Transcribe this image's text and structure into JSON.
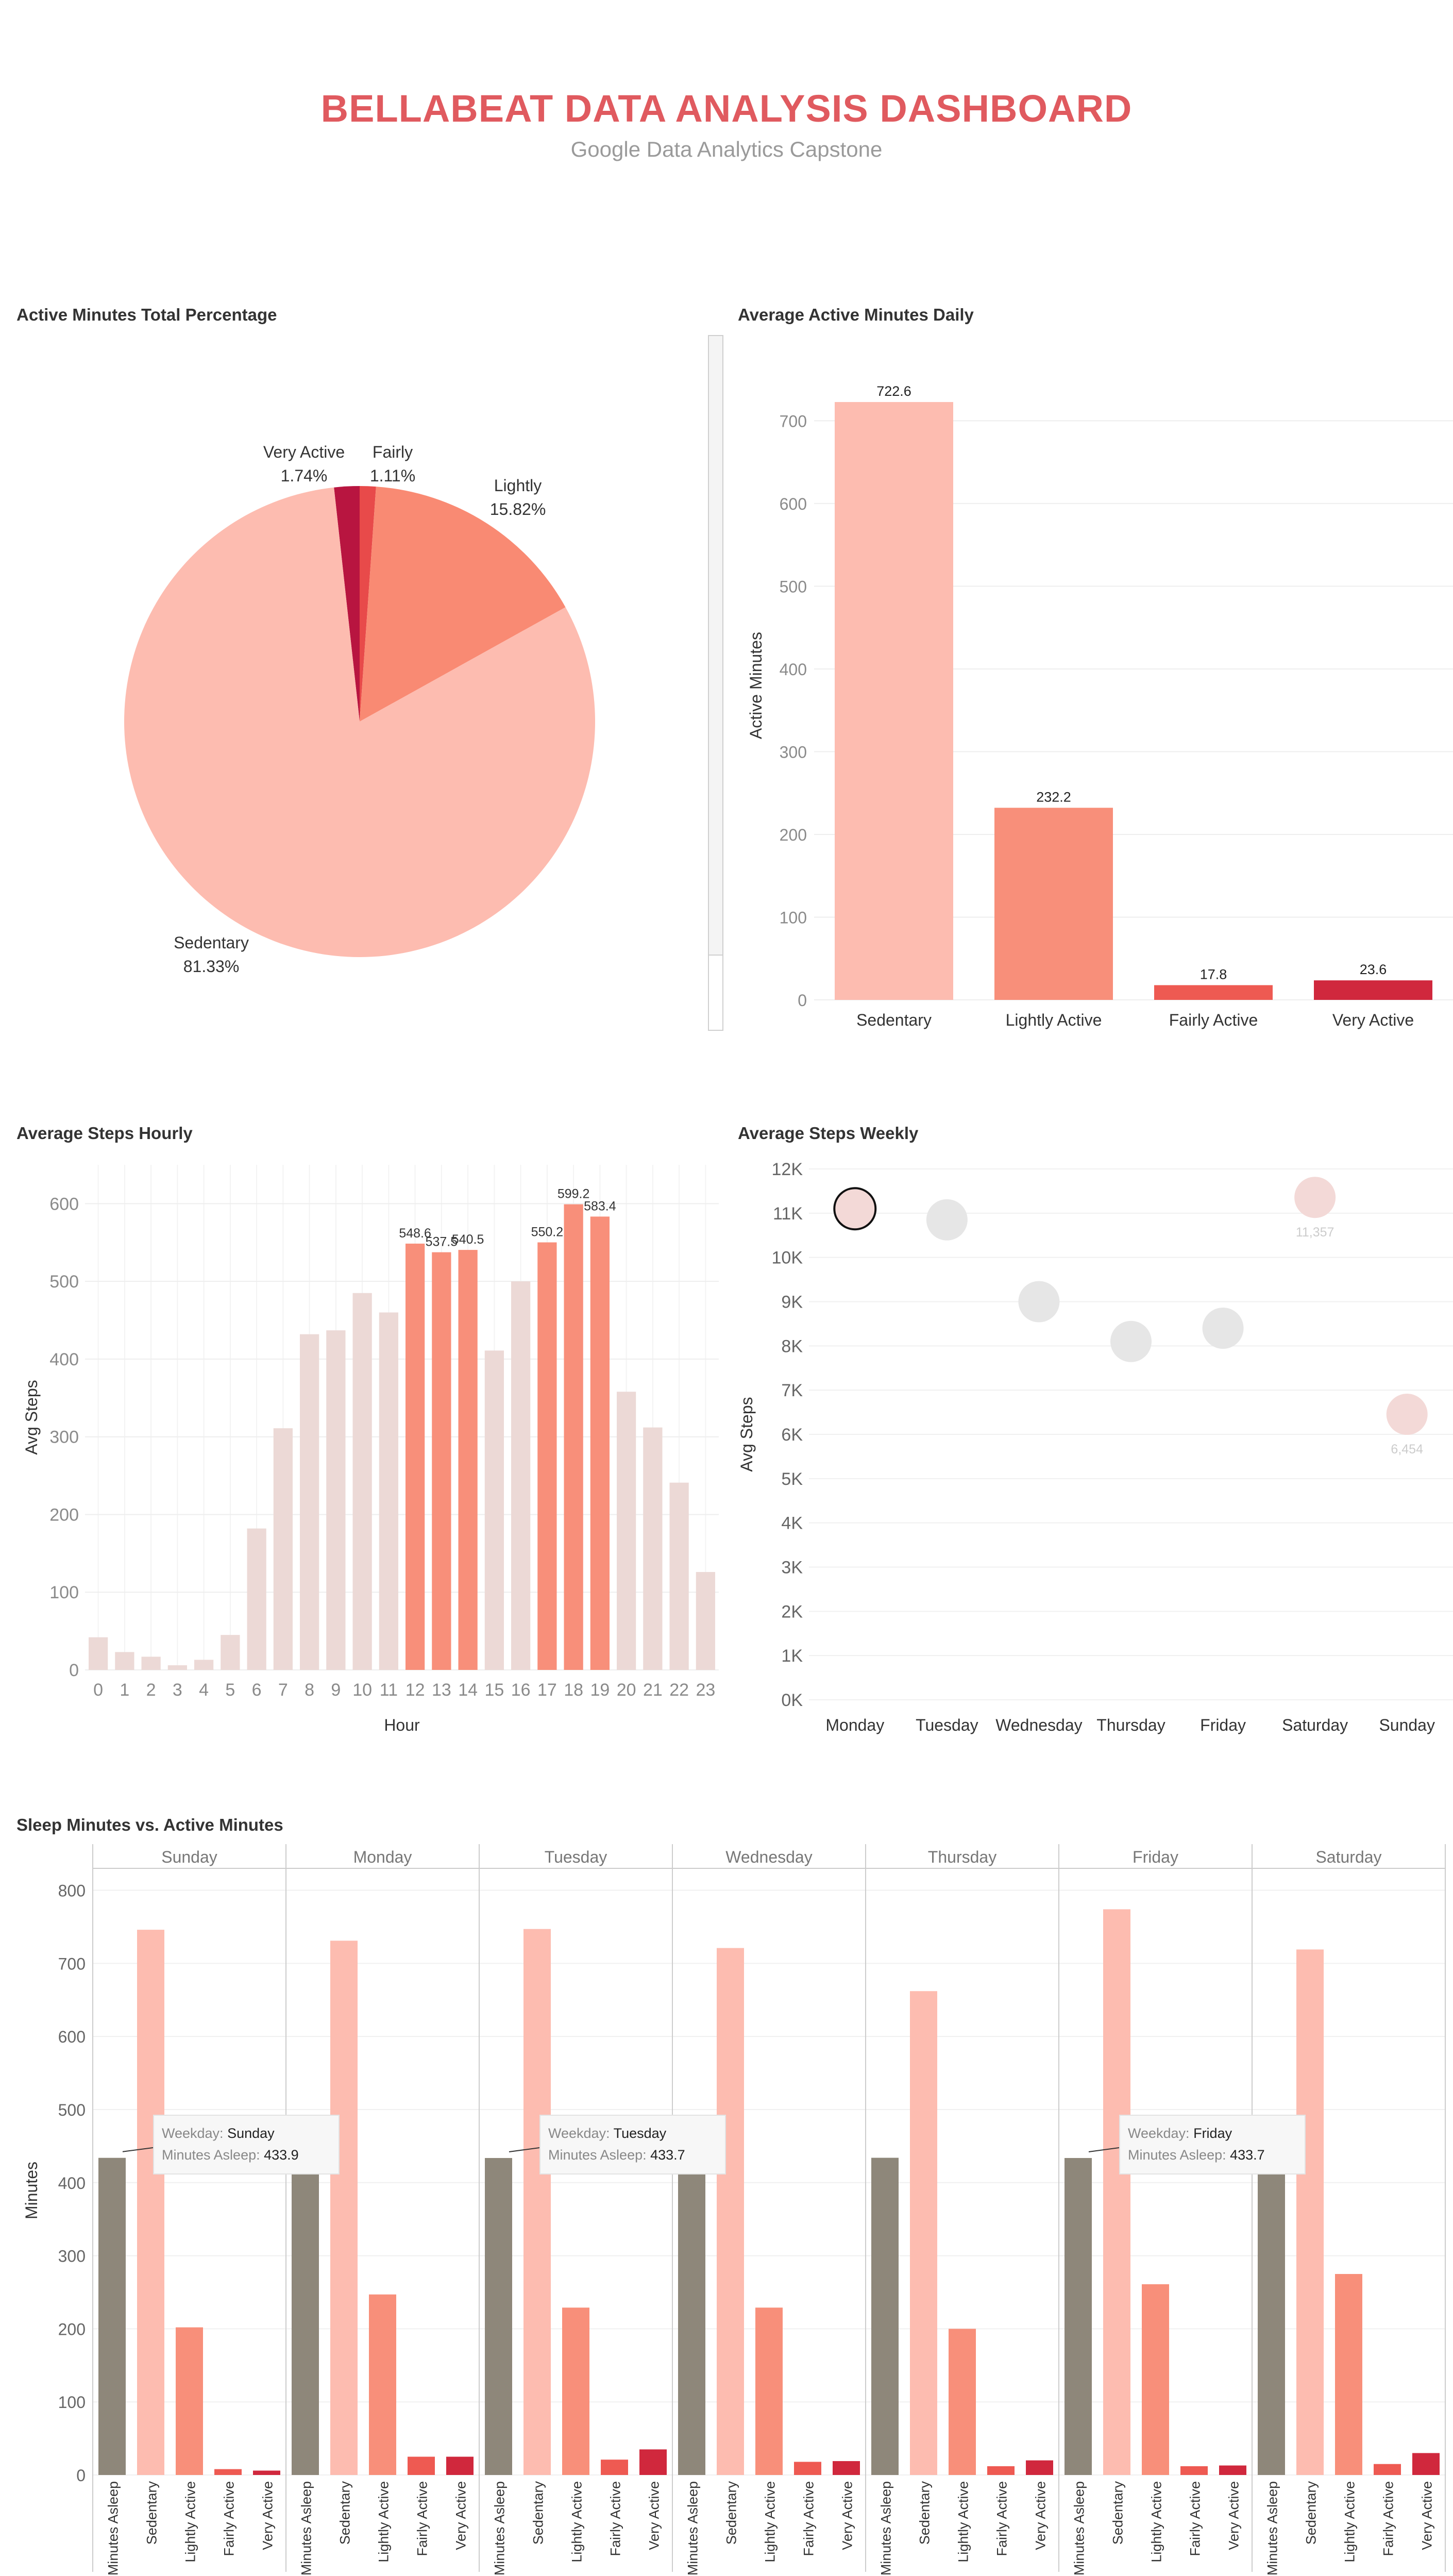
{
  "header": {
    "title": "BELLABEAT DATA ANALYSIS DASHBOARD",
    "subtitle": "Google Data Analytics Capstone"
  },
  "colors": {
    "title": "#e05a5f",
    "sedentary": "#fdbcb0",
    "lightly": "#f88f7a",
    "fairly": "#ee5a52",
    "very": "#d0283d",
    "pie_very": "#b81540",
    "pie_fairly": "#e84a4a",
    "pie_lightly": "#f98a73",
    "pie_sedentary": "#fdbcb0",
    "steps_low": "#ecd9d6",
    "steps_high": "#f88f7a",
    "asleep": "#8e877a",
    "bubble": "#e6e6e6",
    "bubble_pink": "#f3d9d7"
  },
  "charts": [
    {
      "type": "pie",
      "title": "Active Minutes Total Percentage",
      "slices": [
        {
          "name": "Very Active",
          "label": "Very Active",
          "value_label": "1.74%",
          "value": 1.74,
          "color_key": "pie_very"
        },
        {
          "name": "Fairly",
          "label": "Fairly",
          "value_label": "1.11%",
          "value": 1.11,
          "color_key": "pie_fairly"
        },
        {
          "name": "Lightly",
          "label": "Lightly",
          "value_label": "15.82%",
          "value": 15.82,
          "color_key": "pie_lightly"
        },
        {
          "name": "Sedentary",
          "label": "Sedentary",
          "value_label": "81.33%",
          "value": 81.33,
          "color_key": "pie_sedentary"
        }
      ]
    },
    {
      "type": "bar",
      "title": "Average Active Minutes Daily",
      "ylabel": "Active Minutes",
      "ylim": [
        0,
        760
      ],
      "yticks": [
        0,
        100,
        200,
        300,
        400,
        500,
        600,
        700
      ],
      "categories": [
        "Sedentary",
        "Lightly Active",
        "Fairly Active",
        "Very Active"
      ],
      "values": [
        722.6,
        232.2,
        17.8,
        23.6
      ],
      "value_labels": [
        "722.6",
        "232.2",
        "17.8",
        "23.6"
      ],
      "color_keys": [
        "sedentary",
        "lightly",
        "fairly",
        "very"
      ]
    },
    {
      "type": "bar",
      "title": "Average Steps Hourly",
      "xlabel": "Hour",
      "ylabel": "Avg Steps",
      "ylim": [
        0,
        650
      ],
      "yticks": [
        0,
        100,
        200,
        300,
        400,
        500,
        600
      ],
      "categories": [
        "0",
        "1",
        "2",
        "3",
        "4",
        "5",
        "6",
        "7",
        "8",
        "9",
        "10",
        "11",
        "12",
        "13",
        "14",
        "15",
        "16",
        "17",
        "18",
        "19",
        "20",
        "21",
        "22",
        "23"
      ],
      "values": [
        42,
        23,
        17,
        6,
        13,
        45,
        182,
        311,
        432,
        437,
        485,
        460,
        548.6,
        537.5,
        540.5,
        411,
        500,
        550.2,
        599.2,
        583.4,
        358,
        312,
        241,
        126
      ],
      "labels": {
        "12": "548.6",
        "13": "537.5",
        "14": "540.5",
        "17": "550.2",
        "18": "599.2",
        "19": "583.4"
      },
      "highlight": [
        "12",
        "13",
        "14",
        "17",
        "18",
        "19"
      ]
    },
    {
      "type": "scatter",
      "title": "Average Steps Weekly",
      "ylabel": "Avg Steps",
      "ylim": [
        0,
        12000
      ],
      "yticks": [
        0,
        1000,
        2000,
        3000,
        4000,
        5000,
        6000,
        7000,
        8000,
        9000,
        10000,
        11000,
        12000
      ],
      "ytick_labels": [
        "0K",
        "1K",
        "2K",
        "3K",
        "4K",
        "5K",
        "6K",
        "7K",
        "8K",
        "9K",
        "10K",
        "11K",
        "12K"
      ],
      "categories": [
        "Monday",
        "Tuesday",
        "Wednesday",
        "Thursday",
        "Friday",
        "Saturday",
        "Sunday"
      ],
      "values": [
        11100,
        10850,
        9000,
        8100,
        8400,
        11357,
        6454
      ],
      "point_labels": [
        "",
        "",
        "",
        "",
        "",
        "11,357",
        "6,454"
      ],
      "selected": "Monday"
    },
    {
      "type": "bar",
      "title": "Sleep Minutes vs. Active Minutes",
      "ylabel": "Minutes",
      "ylim": [
        0,
        830
      ],
      "yticks": [
        0,
        100,
        200,
        300,
        400,
        500,
        600,
        700,
        800
      ],
      "panels": [
        "Sunday",
        "Monday",
        "Tuesday",
        "Wednesday",
        "Thursday",
        "Friday",
        "Saturday"
      ],
      "measures": [
        "Minutes Asleep",
        "Sedentary",
        "Lightly Active",
        "Fairly Active",
        "Very Active"
      ],
      "measure_color_keys": [
        "asleep",
        "sedentary",
        "lightly",
        "fairly",
        "very"
      ],
      "series": [
        {
          "name": "Sunday",
          "values": [
            433.9,
            746,
            202,
            8,
            6
          ]
        },
        {
          "name": "Monday",
          "values": [
            426,
            731,
            247,
            25,
            25
          ]
        },
        {
          "name": "Tuesday",
          "values": [
            433.7,
            747,
            229,
            21,
            35
          ]
        },
        {
          "name": "Wednesday",
          "values": [
            426,
            721,
            229,
            18,
            19
          ]
        },
        {
          "name": "Thursday",
          "values": [
            434,
            662,
            200,
            12,
            20
          ]
        },
        {
          "name": "Friday",
          "values": [
            433.7,
            774,
            261,
            12,
            13
          ]
        },
        {
          "name": "Saturday",
          "values": [
            426,
            719,
            275,
            15,
            30
          ]
        }
      ],
      "tooltips": [
        {
          "panel": "Sunday",
          "weekday_key": "Weekday:",
          "weekday": "Sunday",
          "asleep_key": "Minutes Asleep:",
          "asleep": "433.9"
        },
        {
          "panel": "Tuesday",
          "weekday_key": "Weekday:",
          "weekday": "Tuesday",
          "asleep_key": "Minutes Asleep:",
          "asleep": "433.7"
        },
        {
          "panel": "Friday",
          "weekday_key": "Weekday:",
          "weekday": "Friday",
          "asleep_key": "Minutes Asleep:",
          "asleep": "433.7"
        }
      ]
    }
  ]
}
